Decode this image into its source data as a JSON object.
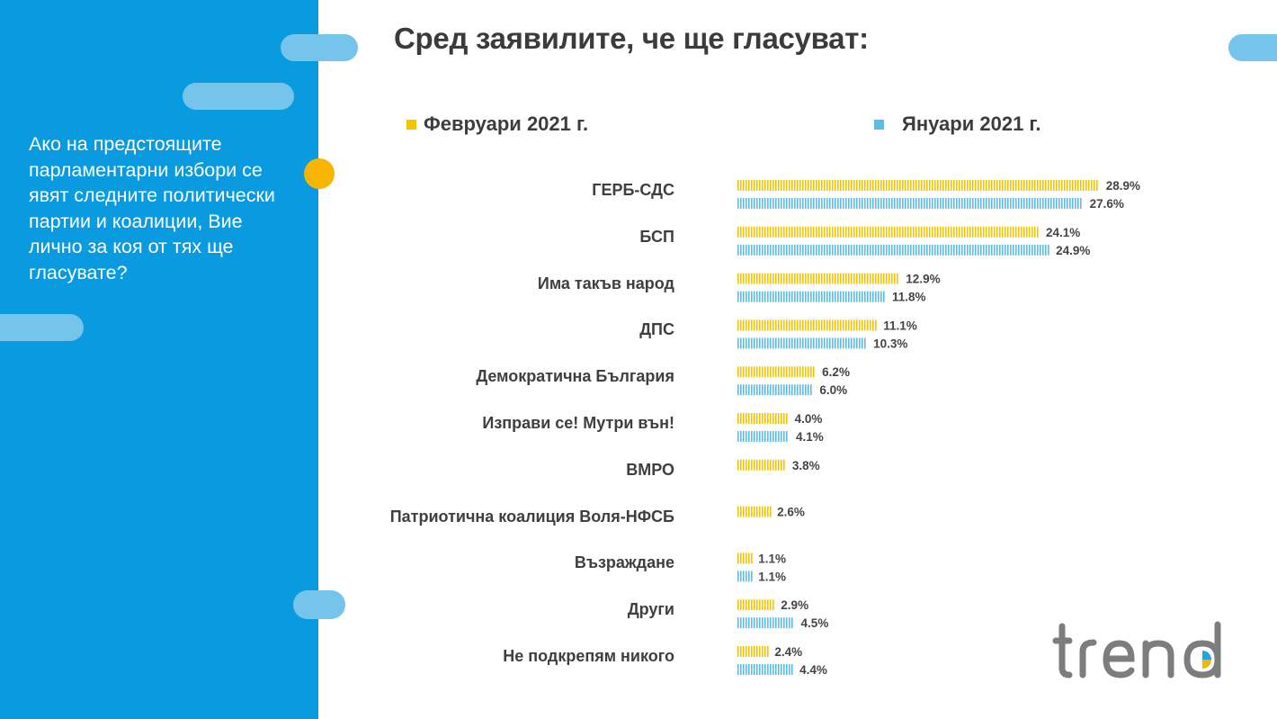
{
  "sidebar": {
    "question": "Ако на предстоящите парламентарни избори се явят следните политически партии и коалиции, Вие лично за коя от тях ще гласувате?"
  },
  "logo_text": "trend",
  "colors": {
    "sidebar": "#0a9ae0",
    "pill": "#74c4eb",
    "accent_dot": "#f7b500",
    "february": "#f2c500",
    "january": "#5bbde4",
    "logo_gray": "#7d7d7d"
  },
  "chart_data": {
    "type": "bar",
    "orientation": "horizontal",
    "title": "Сред заявилите, че ще гласуват:",
    "categories": [
      "ГЕРБ-СДС",
      "БСП",
      "Има такъв народ",
      "ДПС",
      "Демократична България",
      "Изправи се! Мутри вън!",
      "ВМРО",
      "Патриотична коалиция Воля-НФСБ",
      "Възраждане",
      "Други",
      "Не подкрепям никого"
    ],
    "series": [
      {
        "name": "Февруари 2021 г.",
        "values": [
          28.9,
          24.1,
          12.9,
          11.1,
          6.2,
          4.0,
          3.8,
          2.6,
          1.1,
          2.9,
          2.4
        ],
        "labels": [
          "28.9%",
          "24.1%",
          "12.9%",
          "11.1%",
          "6.2%",
          "4.0%",
          "3.8%",
          "2.6%",
          "1.1%",
          "2.9%",
          "2.4%"
        ]
      },
      {
        "name": "Януари 2021 г.",
        "values": [
          27.6,
          24.9,
          11.8,
          10.3,
          6.0,
          4.1,
          null,
          null,
          1.1,
          4.5,
          4.4
        ],
        "labels": [
          "27.6%",
          "24.9%",
          "11.8%",
          "10.3%",
          "6.0%",
          "4.1%",
          null,
          null,
          "1.1%",
          "4.5%",
          "4.4%"
        ]
      }
    ],
    "unit": "%",
    "xlim": [
      0,
      30
    ],
    "legend_position": "top",
    "grid": false
  }
}
